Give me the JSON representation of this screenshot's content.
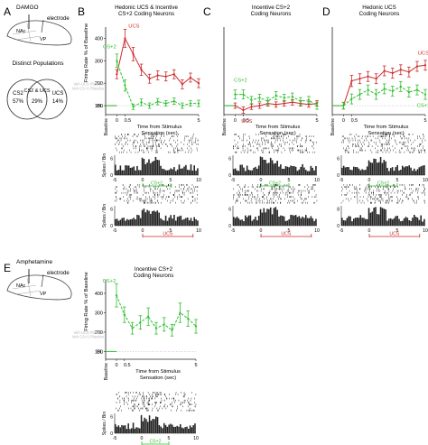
{
  "panel_letters": [
    "A",
    "B",
    "C",
    "D",
    "E"
  ],
  "panel_a": {
    "drug": "DAMGO",
    "electrode_label": "electrode",
    "region_nac": "NAc",
    "region_vp": "VP",
    "populations_title": "Distinct Populations",
    "venn": [
      {
        "name": "CS2",
        "percent": "57%"
      },
      {
        "name": "CS2 & UCS",
        "percent": "29%"
      },
      {
        "name": "UCS",
        "percent": "14%"
      }
    ]
  },
  "panel_e": {
    "drug": "Amphetamine",
    "electrode_label": "electrode",
    "region_nac": "NAc",
    "region_vp": "VP"
  },
  "colors": {
    "ucs": "#cc2a2a",
    "cs": "#2fbf2f",
    "baseline_gray": "#b5b5b5",
    "raster": "#222222"
  },
  "shared": {
    "ylabel": "Firing Rate % of Baseline",
    "xlabel": "Time from Stimulus Sensation (sec)",
    "baseline_tick": "BL",
    "baseline_axis_label": "Baseline",
    "spikes_label": "Spikes / Bin",
    "cs_bar_label": "CS+2",
    "ucs_bar_label": "UCS",
    "veh_ucs_placebo": "Veh UCS Placebo",
    "veh_cs_placebo": "Veh CS+2 Placebo"
  },
  "chart_data": [
    {
      "panel": "B",
      "type": "line",
      "title": "Hedonic UCS & Incentive CS+2 Coding Neurons",
      "xlabel": "Time from Stimulus Sensation (sec)",
      "ylabel": "Firing Rate % of Baseline",
      "ylim": [
        60,
        450
      ],
      "yticks": [
        100,
        200,
        300,
        400
      ],
      "xticks": [
        "-5",
        "0",
        "0.5",
        "5"
      ],
      "series": [
        {
          "name": "UCS",
          "color": "#cc2a2a",
          "x": [
            -5,
            0,
            0.5,
            1,
            1.5,
            2,
            2.5,
            3,
            3.5,
            4,
            4.5,
            5
          ],
          "y": [
            100,
            240,
            400,
            330,
            260,
            220,
            235,
            230,
            240,
            195,
            225,
            200
          ],
          "err": [
            0,
            20,
            40,
            30,
            25,
            20,
            20,
            20,
            20,
            20,
            20,
            20
          ]
        },
        {
          "name": "CS+2",
          "color": "#2fbf2f",
          "x": [
            -5,
            0,
            0.5,
            1,
            1.5,
            2,
            2.5,
            3,
            3.5,
            4,
            4.5,
            5
          ],
          "y": [
            100,
            300,
            190,
            95,
            115,
            100,
            118,
            110,
            120,
            100,
            110,
            110
          ],
          "err": [
            0,
            30,
            25,
            12,
            15,
            12,
            14,
            12,
            14,
            12,
            12,
            14
          ]
        }
      ],
      "annotations": [
        "CS+2",
        "UCS"
      ],
      "placebo_labels": [
        "Veh UCS Placebo",
        "Veh CS+2 Placebo"
      ],
      "raster": {
        "spikes_yticks": [
          0,
          6
        ],
        "xticks": [
          -5,
          0,
          5,
          10
        ],
        "bar": "CS+2"
      },
      "raster2": {
        "spikes_yticks": [
          0,
          6
        ],
        "xticks": [
          -5,
          0,
          5,
          10
        ],
        "bar": "UCS"
      }
    },
    {
      "panel": "C",
      "type": "line",
      "title": "Incentive CS+2 Coding Neurons",
      "xlabel": "Time from Stimulus Sensation (sec)",
      "ylim": [
        60,
        450
      ],
      "xticks": [
        "-5",
        "0",
        "0.5",
        "5"
      ],
      "series": [
        {
          "name": "UCS",
          "color": "#cc2a2a",
          "x": [
            -5,
            0,
            0.5,
            1,
            1.5,
            2,
            2.5,
            3,
            3.5,
            4,
            4.5,
            5
          ],
          "y": [
            100,
            100,
            80,
            95,
            100,
            110,
            105,
            110,
            115,
            110,
            105,
            110
          ],
          "err": [
            0,
            12,
            14,
            12,
            12,
            12,
            12,
            12,
            12,
            12,
            12,
            12
          ]
        },
        {
          "name": "CS+2",
          "color": "#2fbf2f",
          "x": [
            -5,
            0,
            0.5,
            1,
            1.5,
            2,
            2.5,
            3,
            3.5,
            4,
            4.5,
            5
          ],
          "y": [
            100,
            150,
            150,
            125,
            135,
            120,
            145,
            135,
            140,
            120,
            125,
            100
          ],
          "err": [
            0,
            20,
            20,
            16,
            16,
            16,
            18,
            16,
            16,
            16,
            16,
            16
          ]
        }
      ],
      "annotations": [
        "CS+2",
        "UCS"
      ],
      "raster": {
        "spikes_yticks": [
          0,
          6
        ],
        "xticks": [
          -5,
          0,
          5,
          10
        ],
        "bar": "CS+2"
      },
      "raster2": {
        "spikes_yticks": [
          0,
          6
        ],
        "xticks": [
          -5,
          0,
          5,
          10
        ],
        "bar": "UCS"
      }
    },
    {
      "panel": "D",
      "type": "line",
      "title": "Hedonic UCS Coding Neurons",
      "xlabel": "Time from Stimulus Sensation (sec)",
      "ylim": [
        60,
        450
      ],
      "xticks": [
        "-5",
        "0",
        "0.5",
        "5"
      ],
      "series": [
        {
          "name": "UCS",
          "color": "#cc2a2a",
          "x": [
            -5,
            0,
            0.5,
            1,
            1.5,
            2,
            2.5,
            3,
            3.5,
            4,
            4.5,
            5
          ],
          "y": [
            100,
            100,
            210,
            220,
            230,
            220,
            255,
            245,
            260,
            250,
            275,
            280
          ],
          "err": [
            0,
            15,
            25,
            22,
            22,
            22,
            22,
            22,
            22,
            22,
            22,
            22
          ]
        },
        {
          "name": "CS+2",
          "color": "#2fbf2f",
          "x": [
            -5,
            0,
            0.5,
            1,
            1.5,
            2,
            2.5,
            3,
            3.5,
            4,
            4.5,
            5
          ],
          "y": [
            100,
            100,
            130,
            150,
            170,
            150,
            175,
            165,
            185,
            160,
            170,
            150
          ],
          "err": [
            0,
            15,
            22,
            22,
            22,
            22,
            22,
            22,
            22,
            22,
            22,
            22
          ]
        }
      ],
      "annotations": [
        "UCS",
        "CS+2"
      ],
      "raster": {
        "spikes_yticks": [
          0,
          6
        ],
        "xticks": [
          -5,
          0,
          5,
          10
        ],
        "bar": "CS+2"
      },
      "raster2": {
        "spikes_yticks": [
          0,
          8
        ],
        "xticks": [
          -5,
          0,
          5,
          10
        ],
        "bar": "UCS"
      }
    },
    {
      "panel": "E",
      "type": "line",
      "title": "Incentive CS+2 Coding Neurons",
      "xlabel": "Time from Stimulus Sensation (sec)",
      "ylabel": "Firing Rate % of Baseline",
      "ylim": [
        60,
        470
      ],
      "yticks": [
        100,
        200,
        300,
        400
      ],
      "xticks": [
        "-5",
        "0",
        "0.5",
        "5"
      ],
      "series": [
        {
          "name": "CS+2",
          "color": "#2fbf2f",
          "x": [
            -5,
            0,
            0.5,
            1,
            1.5,
            2,
            2.5,
            3,
            3.5,
            4,
            4.5,
            5
          ],
          "y": [
            100,
            390,
            290,
            220,
            250,
            280,
            220,
            240,
            210,
            300,
            270,
            230
          ],
          "err": [
            0,
            60,
            40,
            30,
            35,
            45,
            30,
            35,
            30,
            50,
            40,
            35
          ]
        }
      ],
      "annotations": [
        "CS+2"
      ],
      "placebo_labels": [
        "Veh UCS Placebo",
        "Veh CS+2 Placebo"
      ],
      "raster": {
        "spikes_yticks": [
          0,
          6
        ],
        "xticks": [
          -5,
          0,
          5,
          10
        ],
        "bar": "CS+2"
      }
    }
  ]
}
